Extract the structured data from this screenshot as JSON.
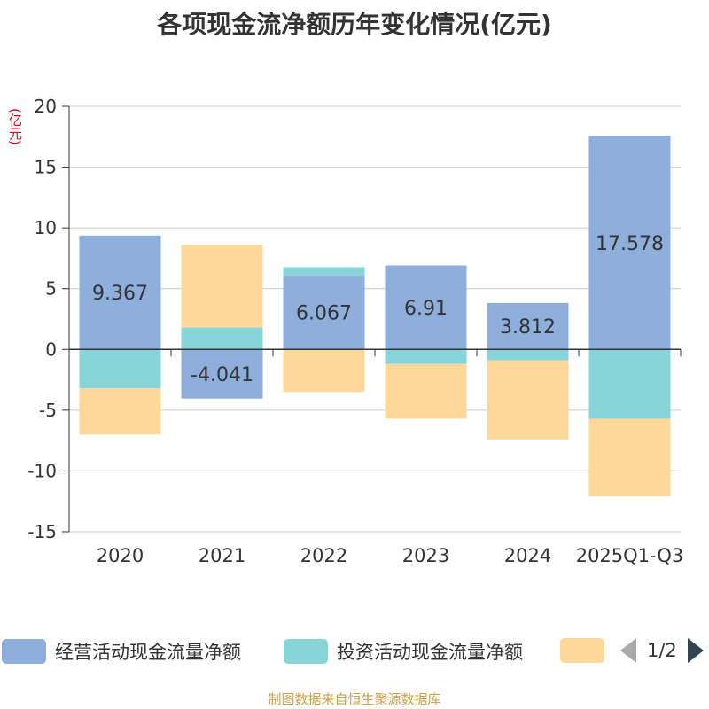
{
  "title": "各项现金流净额历年变化情况(亿元)",
  "unit_label": "(亿元)",
  "source": "制图数据来自恒生聚源数据库",
  "legend": {
    "items": [
      {
        "label": "经营活动现金流量净额",
        "color": "#8eaedb"
      },
      {
        "label": "投资活动现金流量净额",
        "color": "#88d5d9"
      },
      {
        "label": "",
        "color": "#fdd899"
      }
    ],
    "page": "1/2"
  },
  "chart_data": {
    "type": "bar",
    "stacked": true,
    "categories": [
      "2020",
      "2021",
      "2022",
      "2023",
      "2024",
      "2025Q1-Q3"
    ],
    "ylim": [
      -15,
      20
    ],
    "yticks": [
      -15,
      -10,
      -5,
      0,
      5,
      10,
      15,
      20
    ],
    "series": [
      {
        "name": "经营活动现金流量净额",
        "color": "#8eaedb",
        "values": [
          9.367,
          -4.041,
          6.067,
          6.91,
          3.812,
          17.578
        ],
        "labels": [
          "9.367",
          "-4.041",
          "6.067",
          "6.91",
          "3.812",
          "17.578"
        ]
      },
      {
        "name": "投资活动现金流量净额",
        "color": "#88d5d9",
        "values": [
          -3.2,
          1.8,
          0.7,
          -1.2,
          -0.9,
          -5.7
        ]
      },
      {
        "name": "",
        "color": "#fdd899",
        "values": [
          -3.8,
          6.8,
          -3.5,
          -4.5,
          -6.5,
          -6.4
        ]
      }
    ]
  }
}
